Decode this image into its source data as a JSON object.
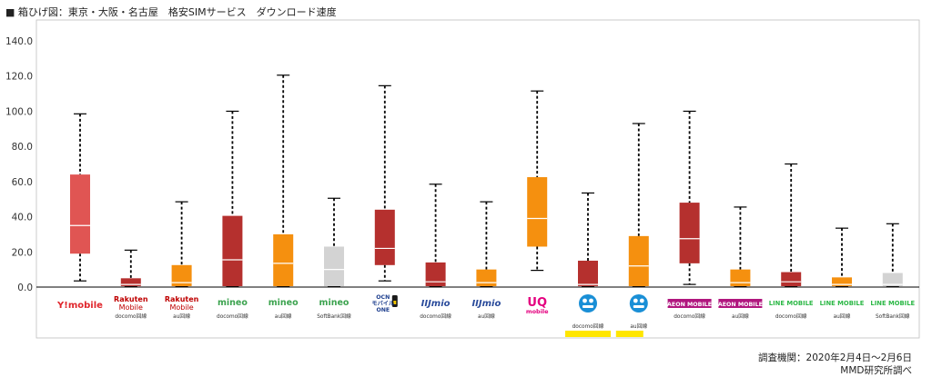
{
  "page_title": "■ 箱ひげ図：東京・大阪・名古屋　格安SIMサービス　ダウンロード速度",
  "footer": {
    "period": "調査機関：2020年2月4日～2月6日",
    "source": "MMD研究所調べ"
  },
  "colors": {
    "docomo": "#b5302e",
    "au": "#f5900f",
    "softbank": "#d3d3d3",
    "ymobile": "#e05553",
    "uq": "#f5900f",
    "highlight": "#ffe600",
    "median": "#ffffff",
    "whisker": "#000000",
    "axis": "#000000"
  },
  "chart_data": {
    "type": "boxplot",
    "ylim": [
      0,
      140
    ],
    "yticks": [
      "0.0",
      "20.0",
      "40.0",
      "60.0",
      "80.0",
      "100.0",
      "120.0",
      "140.0"
    ],
    "grid": false,
    "legend": "none",
    "categories": [
      {
        "logo": "Y!mobile",
        "sub": "",
        "carrier": "ymobile",
        "min": 3.5,
        "q1": 19,
        "median": 35,
        "q3": 64,
        "max": 98.5
      },
      {
        "logo": "Rakuten Mobile",
        "sub": "docomo回線",
        "carrier": "docomo",
        "min": 0.3,
        "q1": 0.5,
        "median": 1.5,
        "q3": 5,
        "max": 21
      },
      {
        "logo": "Rakuten Mobile",
        "sub": "au回線",
        "carrier": "au",
        "min": 0.3,
        "q1": 0.5,
        "median": 2.5,
        "q3": 12.5,
        "max": 48.5
      },
      {
        "logo": "mineo",
        "sub": "docomo回線",
        "carrier": "docomo",
        "min": 0.3,
        "q1": 0.5,
        "median": 15.5,
        "q3": 40.5,
        "max": 100
      },
      {
        "logo": "mineo",
        "sub": "au回線",
        "carrier": "au",
        "min": 0.3,
        "q1": 0.5,
        "median": 13.5,
        "q3": 30,
        "max": 120.5
      },
      {
        "logo": "mineo",
        "sub": "SoftBank回線",
        "carrier": "softbank",
        "min": 0.3,
        "q1": 0.5,
        "median": 10,
        "q3": 23,
        "max": 50.5
      },
      {
        "logo": "OCN モバイル ONE",
        "sub": "",
        "carrier": "docomo",
        "min": 3.5,
        "q1": 12.5,
        "median": 22,
        "q3": 44,
        "max": 114.5
      },
      {
        "logo": "IIJmio",
        "sub": "docomo回線",
        "carrier": "docomo",
        "min": 0.3,
        "q1": 0.5,
        "median": 3,
        "q3": 14,
        "max": 58.5
      },
      {
        "logo": "IIJmio",
        "sub": "au回線",
        "carrier": "au",
        "min": 0.3,
        "q1": 0.5,
        "median": 2.5,
        "q3": 10,
        "max": 48.5
      },
      {
        "logo": "UQ mobile",
        "sub": "",
        "carrier": "uq",
        "min": 9.5,
        "q1": 23,
        "median": 39,
        "q3": 62.5,
        "max": 111.5
      },
      {
        "logo": "",
        "sub": "docomo回線",
        "carrier": "docomo",
        "min": 0.3,
        "q1": 0.5,
        "median": 1.5,
        "q3": 15,
        "max": 53.5,
        "highlight": true
      },
      {
        "logo": "",
        "sub": "au回線",
        "carrier": "au",
        "min": 0.3,
        "q1": 0.5,
        "median": 12,
        "q3": 29,
        "max": 93,
        "highlight": true
      },
      {
        "logo": "AEON MOBILE",
        "sub": "docomo回線",
        "carrier": "docomo",
        "min": 1.5,
        "q1": 13.5,
        "median": 27.5,
        "q3": 48,
        "max": 100
      },
      {
        "logo": "AEON MOBILE",
        "sub": "au回線",
        "carrier": "au",
        "min": 0.3,
        "q1": 0.5,
        "median": 2.5,
        "q3": 10,
        "max": 45.5
      },
      {
        "logo": "LINE MOBILE",
        "sub": "docomo回線",
        "carrier": "docomo",
        "min": 0.3,
        "q1": 0.5,
        "median": 3,
        "q3": 8.5,
        "max": 70
      },
      {
        "logo": "LINE MOBILE",
        "sub": "au回線",
        "carrier": "au",
        "min": 0.3,
        "q1": 0.5,
        "median": 1.5,
        "q3": 5.5,
        "max": 33.5
      },
      {
        "logo": "LINE MOBILE",
        "sub": "SoftBank回線",
        "carrier": "softbank",
        "min": 0.3,
        "q1": 0.5,
        "median": 1.5,
        "q3": 8,
        "max": 36
      }
    ]
  }
}
